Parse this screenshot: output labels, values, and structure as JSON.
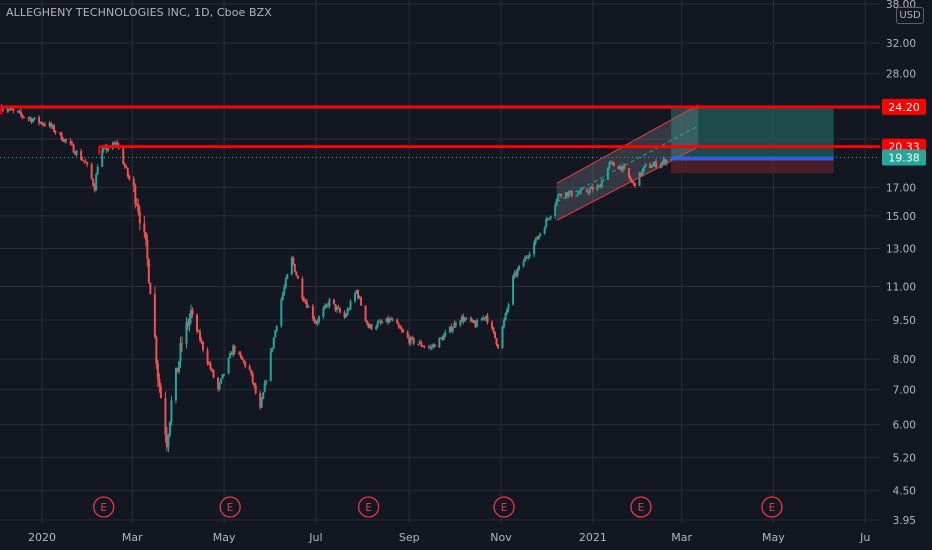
{
  "title": "ALLEGHENY TECHNOLOGIES INC, 1D, Cboe BZX",
  "currency": "USD",
  "colors": {
    "background": "#131722",
    "grid": "#2a2e39",
    "up": "#26a69a",
    "down": "#ef5350",
    "level": "#ff0000",
    "last_price": "#26a69a",
    "channel": "#f23645",
    "target_zone": "#1f5d5a",
    "stop_zone": "#5b1f27",
    "earnings": "#f23645"
  },
  "chart_data": {
    "type": "candlestick",
    "title": "ALLEGHENY TECHNOLOGIES INC, 1D, Cboe BZX",
    "y_scale": "log",
    "ylim": [
      3.95,
      38.0
    ],
    "y_ticks": [
      "38.00",
      "32.00",
      "28.00",
      "24.00",
      "21.00",
      "17.00",
      "15.00",
      "13.00",
      "11.00",
      "9.50",
      "8.00",
      "7.00",
      "6.00",
      "5.20",
      "4.50",
      "3.95"
    ],
    "x_ticks": [
      "2020",
      "Mar",
      "May",
      "Jul",
      "Sep",
      "Nov",
      "2021",
      "Mar",
      "May",
      "Ju"
    ],
    "horizontal_levels": [
      {
        "label": "24.20",
        "value": 24.2,
        "start_date": "2019-12-05"
      },
      {
        "label": "20.33",
        "value": 20.33,
        "start_date": "2020-02-08"
      }
    ],
    "last_price": {
      "label": "19.38",
      "value": 19.38
    },
    "earnings_markers": [
      "2020-02-11",
      "2020-05-05",
      "2020-08-05",
      "2020-11-03",
      "2021-02-02",
      "2021-04-30"
    ],
    "earnings_label": "E",
    "price_channel": {
      "lower": [
        [
          "2020-12-08",
          14.7
        ],
        [
          "2021-03-12",
          20.3
        ]
      ],
      "upper": [
        [
          "2020-12-08",
          17.3
        ],
        [
          "2021-03-12",
          24.4
        ]
      ]
    },
    "position": {
      "entry": 19.38,
      "target": 24.2,
      "stop": 18.1,
      "start": "2021-02-22",
      "end": "2021-06-10"
    },
    "close_anchors": [
      [
        "2019-12-05",
        24.2
      ],
      [
        "2019-12-20",
        23.2
      ],
      [
        "2020-01-06",
        22.3
      ],
      [
        "2020-01-20",
        20.4
      ],
      [
        "2020-01-30",
        18.9
      ],
      [
        "2020-02-05",
        17.0
      ],
      [
        "2020-02-08",
        19.8
      ],
      [
        "2020-02-20",
        20.6
      ],
      [
        "2020-02-27",
        17.9
      ],
      [
        "2020-03-04",
        16.2
      ],
      [
        "2020-03-10",
        13.0
      ],
      [
        "2020-03-13",
        11.0
      ],
      [
        "2020-03-18",
        7.5
      ],
      [
        "2020-03-24",
        5.6
      ],
      [
        "2020-03-27",
        6.6
      ],
      [
        "2020-04-03",
        8.6
      ],
      [
        "2020-04-09",
        9.8
      ],
      [
        "2020-04-17",
        8.4
      ],
      [
        "2020-04-27",
        7.0
      ],
      [
        "2020-05-07",
        8.4
      ],
      [
        "2020-05-18",
        7.6
      ],
      [
        "2020-05-25",
        6.4
      ],
      [
        "2020-06-01",
        8.2
      ],
      [
        "2020-06-08",
        10.4
      ],
      [
        "2020-06-15",
        12.4
      ],
      [
        "2020-06-22",
        10.6
      ],
      [
        "2020-07-01",
        9.4
      ],
      [
        "2020-07-10",
        10.3
      ],
      [
        "2020-07-20",
        9.6
      ],
      [
        "2020-07-28",
        10.8
      ],
      [
        "2020-08-05",
        9.2
      ],
      [
        "2020-08-20",
        9.5
      ],
      [
        "2020-09-01",
        8.7
      ],
      [
        "2020-09-15",
        8.4
      ],
      [
        "2020-09-25",
        8.9
      ],
      [
        "2020-10-05",
        9.6
      ],
      [
        "2020-10-15",
        9.3
      ],
      [
        "2020-10-22",
        9.7
      ],
      [
        "2020-10-30",
        8.5
      ],
      [
        "2020-11-06",
        10.2
      ],
      [
        "2020-11-09",
        11.4
      ],
      [
        "2020-11-16",
        12.3
      ],
      [
        "2020-11-25",
        13.6
      ],
      [
        "2020-12-04",
        15.2
      ],
      [
        "2020-12-10",
        16.6
      ],
      [
        "2020-12-20",
        16.5
      ],
      [
        "2021-01-05",
        17.0
      ],
      [
        "2021-01-12",
        18.8
      ],
      [
        "2021-01-20",
        18.6
      ],
      [
        "2021-01-28",
        17.2
      ],
      [
        "2021-02-05",
        18.6
      ],
      [
        "2021-02-15",
        18.9
      ],
      [
        "2021-02-22",
        19.38
      ]
    ]
  }
}
